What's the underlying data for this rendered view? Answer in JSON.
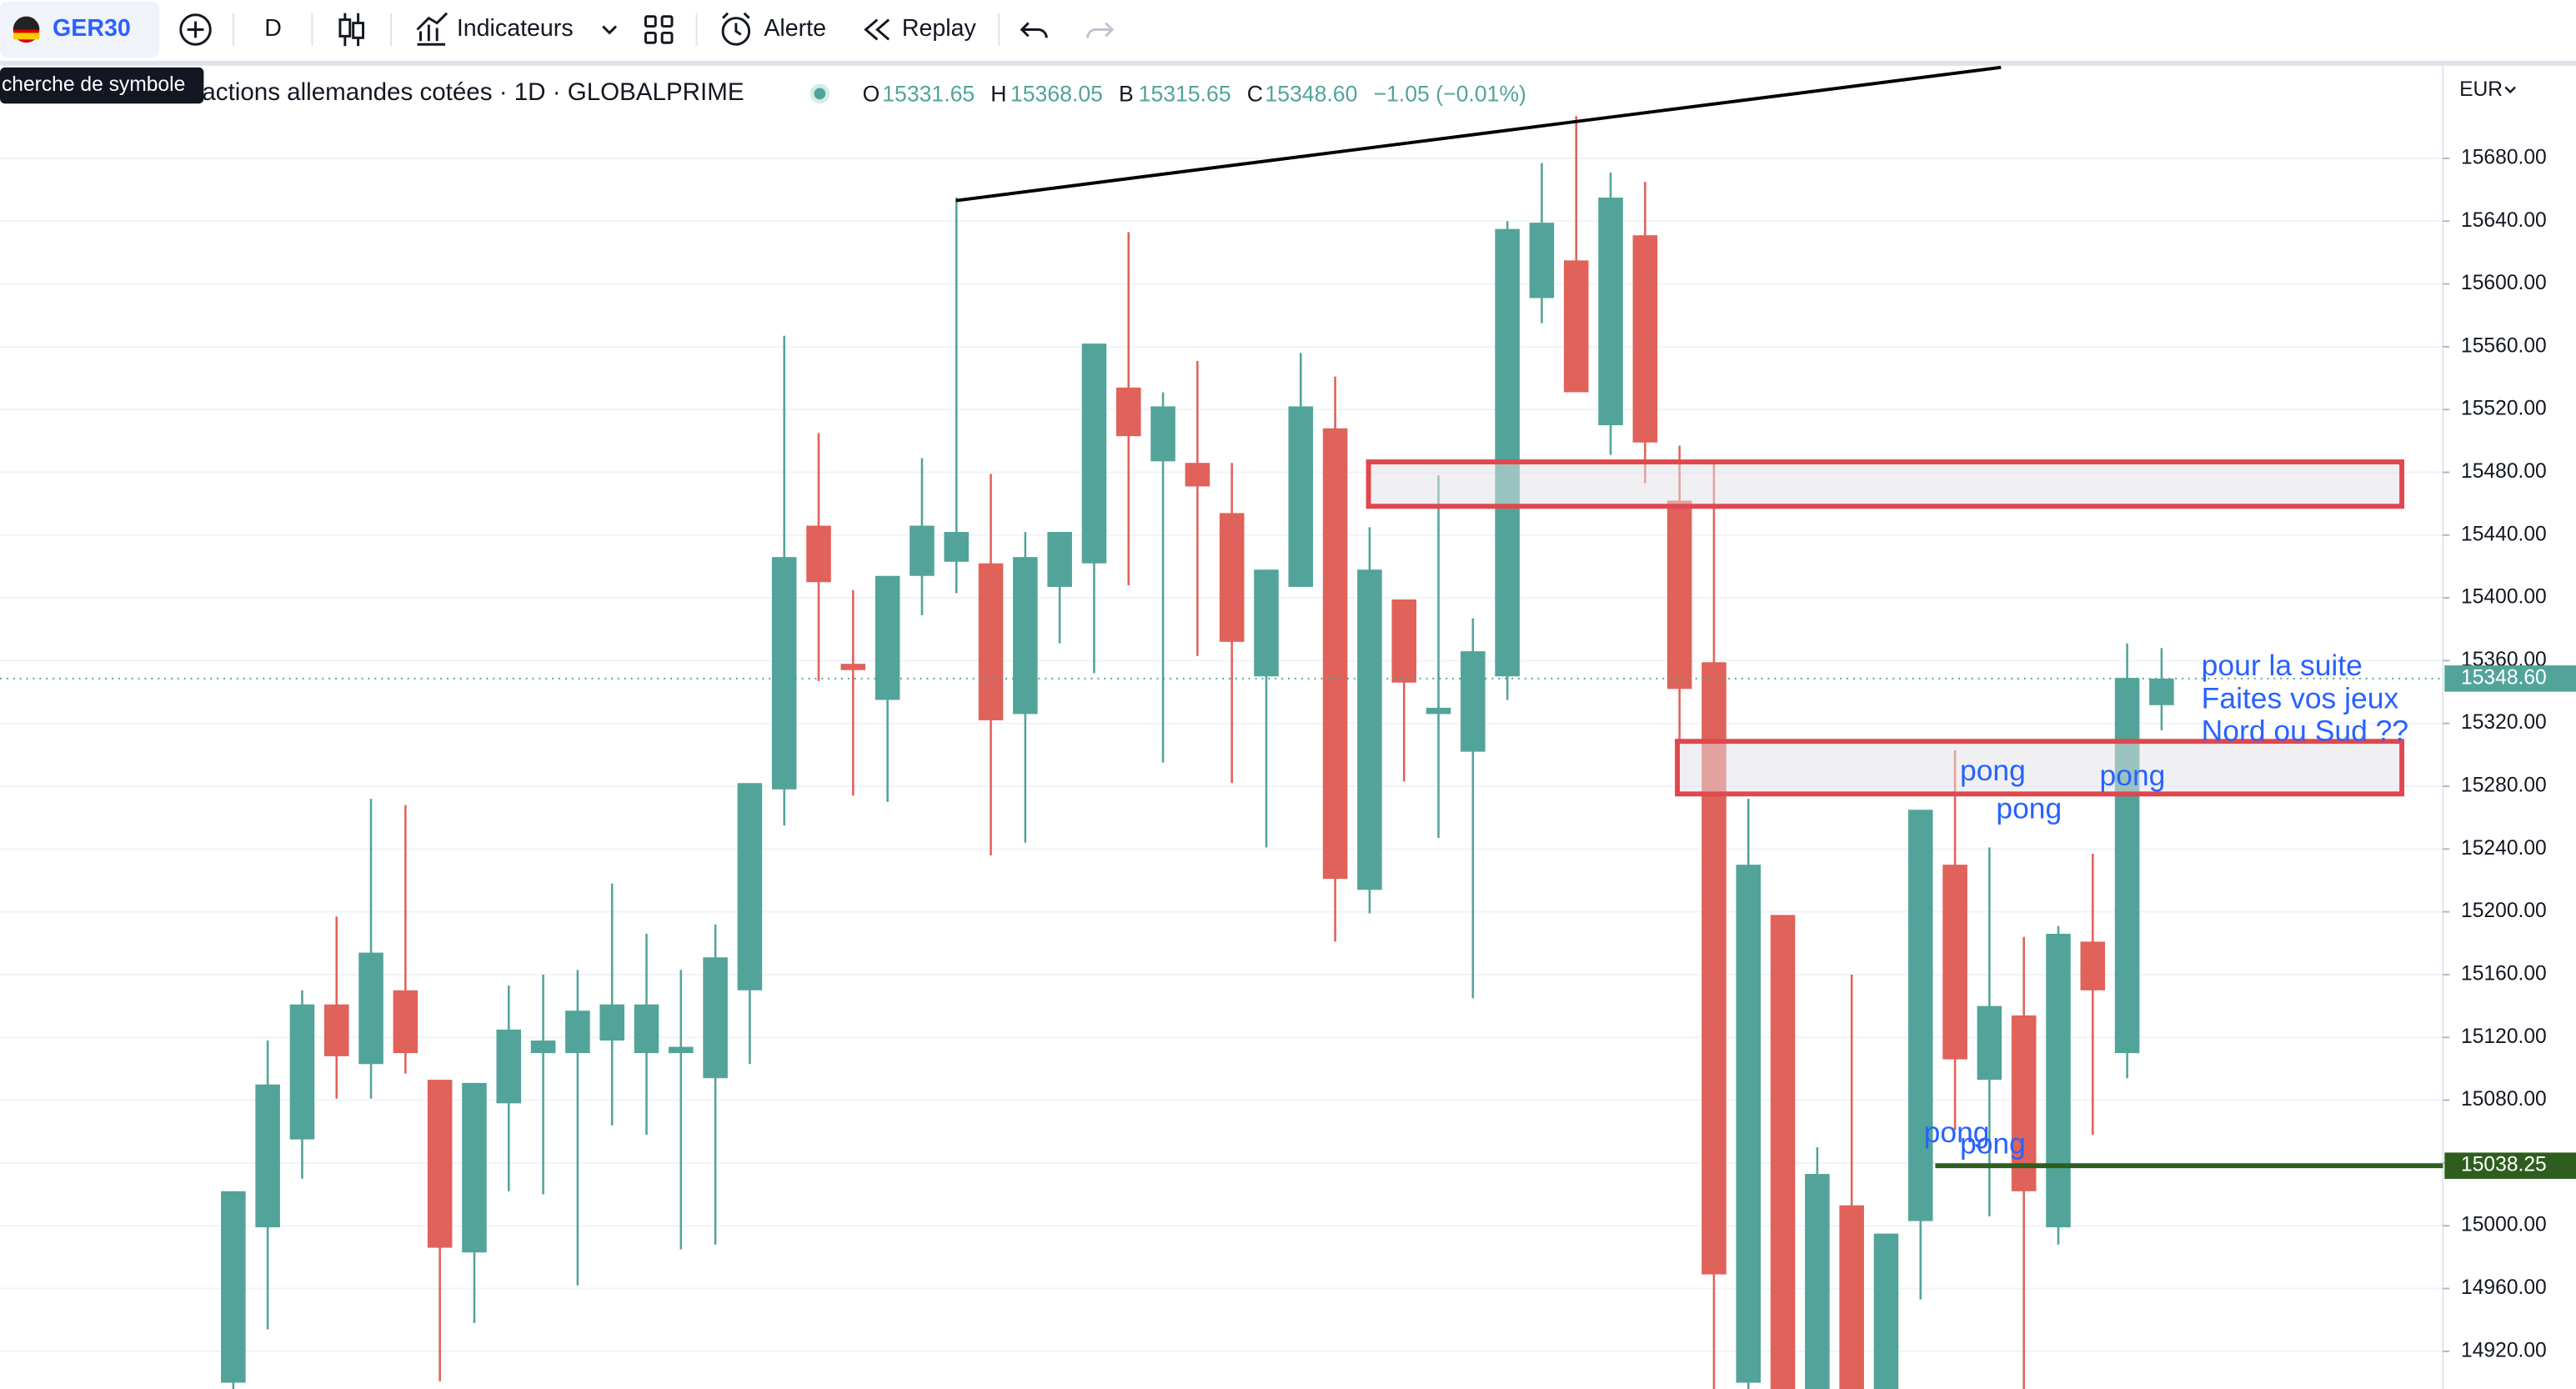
{
  "toolbar": {
    "symbol": "GER30",
    "interval": "D",
    "indicators": "Indicateurs",
    "alert": "Alerte",
    "replay": "Replay",
    "tooltip": "cherche de symbole"
  },
  "legend": {
    "title": "actions allemandes cotées · 1D · GLOBALPRIME",
    "open_label": "O",
    "open": "15331.65",
    "high_label": "H",
    "high": "15368.05",
    "low_label": "B",
    "low": "15315.65",
    "close_label": "C",
    "close": "15348.60",
    "change": "−1.05 (−0.01%)"
  },
  "annotations": [
    "pong",
    "pong",
    "pong",
    "pong",
    "pong",
    "pour la suite",
    "Faites vos jeux",
    "Nord ou Sud ??"
  ],
  "chart_data": {
    "type": "candlestick",
    "currency": "EUR",
    "open": [
      14900,
      14999,
      15055,
      15141,
      15103,
      15150,
      15093,
      14983,
      15078,
      15110,
      15110,
      15118,
      15110,
      15110,
      15094,
      15150,
      15278,
      15446,
      15358,
      15335,
      15414,
      15423,
      15422,
      15326,
      15407,
      15422,
      15534,
      15487,
      15486,
      15454,
      15350,
      15407,
      15508,
      15214,
      15399,
      15326,
      15302,
      15350,
      15591,
      15615,
      15510,
      15631,
      15462,
      15359,
      14900,
      15198,
      14890,
      15013,
      14895,
      15003,
      15230,
      15093,
      15134,
      14999,
      15181,
      15110,
      15331.65
    ],
    "high": [
      15022,
      15118,
      15150,
      15197,
      15272,
      15268,
      15093,
      15091,
      15153,
      15160,
      15163,
      15218,
      15186,
      15163,
      15192,
      15282,
      15567,
      15505,
      15405,
      15414,
      15489,
      15655,
      15479,
      15442,
      15442,
      15562,
      15633,
      15531,
      15551,
      15486,
      15418,
      15556,
      15541,
      15445,
      15399,
      15478,
      15387,
      15640,
      15677,
      15707,
      15671,
      15665,
      15497,
      15486,
      15272,
      15198,
      15050,
      15160,
      14995,
      15265,
      15303,
      15241,
      15184,
      15191,
      15237,
      15371,
      15368.05
    ],
    "low": [
      14880,
      14934,
      15030,
      15081,
      15081,
      15097,
      14901,
      14938,
      15022,
      15020,
      14962,
      15064,
      15058,
      14985,
      14988,
      15103,
      15255,
      15347,
      15274,
      15270,
      15389,
      15403,
      15236,
      15244,
      15371,
      15352,
      15408,
      15295,
      15363,
      15282,
      15241,
      15407,
      15181,
      15199,
      15283,
      15247,
      15145,
      15335,
      15575,
      15531,
      15491,
      15473,
      15310,
      14880,
      14880,
      14870,
      14870,
      14870,
      14875,
      14953,
      15061,
      15006,
      14880,
      14988,
      15058,
      15094,
      15315.65
    ],
    "close": [
      15022,
      15090,
      15141,
      15108,
      15174,
      15110,
      14986,
      15091,
      15125,
      15118,
      15137,
      15141,
      15141,
      15114,
      15171,
      15282,
      15426,
      15410,
      15354,
      15414,
      15446,
      15442,
      15322,
      15426,
      15442,
      15562,
      15503,
      15522,
      15471,
      15372,
      15418,
      15522,
      15221,
      15418,
      15346,
      15330,
      15366,
      15635,
      15639,
      15531,
      15655,
      15499,
      15342,
      14969,
      15230,
      14890,
      15033,
      14890,
      14995,
      15265,
      15106,
      15140,
      15022,
      15186,
      15150,
      15349,
      15348.6
    ],
    "up_color": "#52a49a",
    "down_color": "#e0625a",
    "ylim": [
      14896,
      15739
    ],
    "yticks": [
      {
        "value": 14920,
        "label": "14920.00"
      },
      {
        "value": 14960,
        "label": "14960.00"
      },
      {
        "value": 15000,
        "label": "15000.00"
      },
      {
        "value": 15040,
        "label": "15040.00"
      },
      {
        "value": 15080,
        "label": "15080.00"
      },
      {
        "value": 15120,
        "label": "15120.00"
      },
      {
        "value": 15160,
        "label": "15160.00"
      },
      {
        "value": 15200,
        "label": "15200.00"
      },
      {
        "value": 15240,
        "label": "15240.00"
      },
      {
        "value": 15280,
        "label": "15280.00"
      },
      {
        "value": 15320,
        "label": "15320.00"
      },
      {
        "value": 15360,
        "label": "15360.00"
      },
      {
        "value": 15400,
        "label": "15400.00"
      },
      {
        "value": 15440,
        "label": "15440.00"
      },
      {
        "value": 15480,
        "label": "15480.00"
      },
      {
        "value": 15520,
        "label": "15520.00"
      },
      {
        "value": 15560,
        "label": "15560.00"
      },
      {
        "value": 15600,
        "label": "15600.00"
      },
      {
        "value": 15640,
        "label": "15640.00"
      },
      {
        "value": 15680,
        "label": "15680.00"
      }
    ],
    "grid": true,
    "price_lines": [
      {
        "value": 15348.6,
        "label": "15348.60",
        "color": "#52a49a",
        "style": "dotted"
      },
      {
        "value": 15038.25,
        "color": "#2e5e1f",
        "style": "solid"
      }
    ]
  }
}
